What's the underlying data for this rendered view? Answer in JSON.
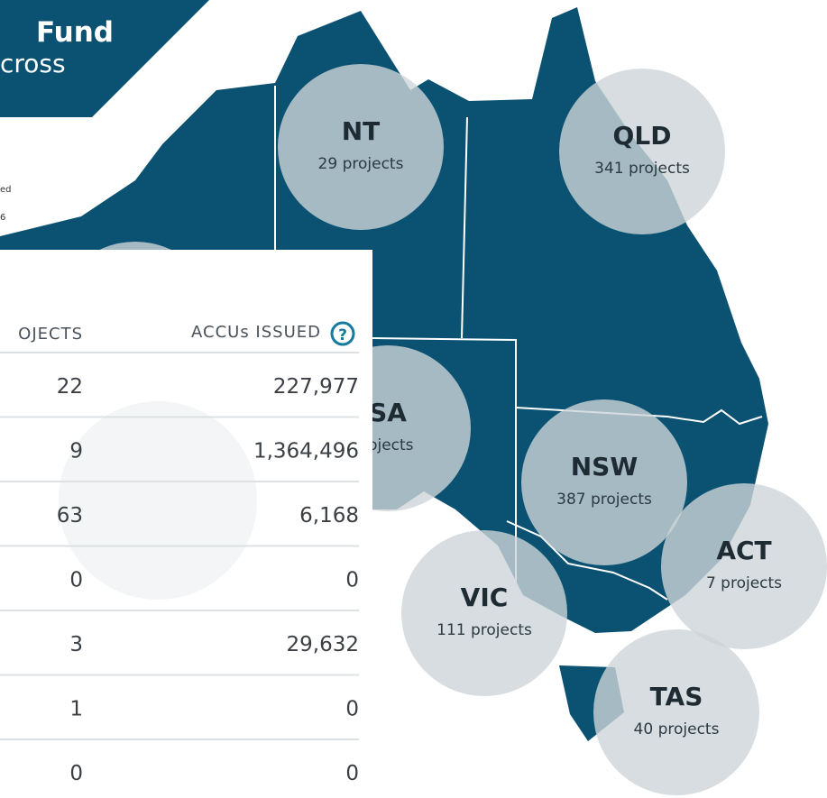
{
  "banner": {
    "title": "Fund",
    "subtitle": "cross",
    "notes": [
      "ed",
      "6"
    ]
  },
  "regions": [
    {
      "code": "NT",
      "label": "29 projects"
    },
    {
      "code": "QLD",
      "label": "341 projects"
    },
    {
      "code": "SA",
      "label": "rojects"
    },
    {
      "code": "NSW",
      "label": "387 projects"
    },
    {
      "code": "ACT",
      "label": "7 projects"
    },
    {
      "code": "VIC",
      "label": "111 projects"
    },
    {
      "code": "TAS",
      "label": "40 projects"
    }
  ],
  "table": {
    "headers": [
      "OJECTS",
      "ACCUs ISSUED"
    ],
    "rows": [
      [
        "22",
        "227,977"
      ],
      [
        "9",
        "1,364,496"
      ],
      [
        "63",
        "6,168"
      ],
      [
        "0",
        "0"
      ],
      [
        "3",
        "29,632"
      ],
      [
        "1",
        "0"
      ],
      [
        "0",
        "0"
      ]
    ]
  }
}
